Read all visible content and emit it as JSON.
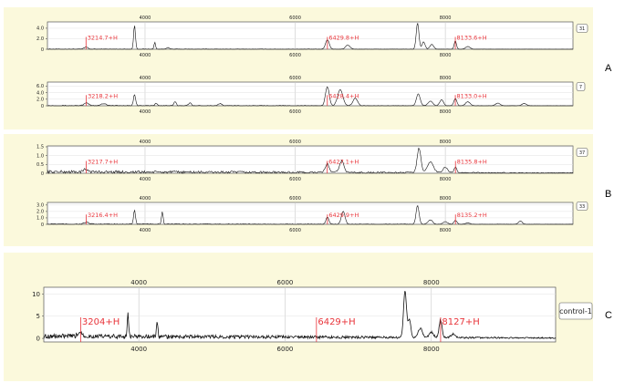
{
  "panel_labels": {
    "A": "A",
    "B": "B",
    "C": "C"
  },
  "colors": {
    "background": "#fbf9dc",
    "trace": "#111111",
    "marker": "#e8343a",
    "grid": "#c8c8c8"
  },
  "chart_data": [
    {
      "type": "line",
      "group": "A",
      "tag": "31",
      "xlim": [
        2700,
        9700
      ],
      "ylim": [
        0,
        5.2
      ],
      "x_ticks": [
        4000,
        6000,
        8000
      ],
      "x_tick_labels": [
        "4000",
        "6000",
        "8000"
      ],
      "y_ticks": [
        0,
        2.0,
        4.0
      ],
      "y_tick_labels": [
        "0",
        "2.0",
        "4.0"
      ],
      "grid": true,
      "noise": 0.07,
      "peaks": [
        [
          3214,
          0.4,
          25
        ],
        [
          3860,
          4.6,
          12
        ],
        [
          4130,
          1.3,
          10
        ],
        [
          4300,
          0.3,
          20
        ],
        [
          6429,
          1.8,
          25
        ],
        [
          6700,
          0.8,
          30
        ],
        [
          7630,
          5.0,
          18
        ],
        [
          7710,
          1.4,
          20
        ],
        [
          7820,
          0.9,
          25
        ],
        [
          8133,
          1.6,
          15
        ],
        [
          8300,
          0.5,
          30
        ]
      ],
      "markers": [
        {
          "x": 3214,
          "label": "3214.7+H"
        },
        {
          "x": 6429,
          "label": "6429.8+H"
        },
        {
          "x": 8133,
          "label": "8133.6+H"
        }
      ]
    },
    {
      "type": "line",
      "group": "A",
      "tag": "7",
      "xlim": [
        2700,
        9700
      ],
      "ylim": [
        0,
        7.2
      ],
      "x_ticks": [
        4000,
        6000,
        8000
      ],
      "x_tick_labels": [
        "4000",
        "6000",
        "8000"
      ],
      "y_ticks": [
        0,
        2.0,
        4.0,
        6.0
      ],
      "y_tick_labels": [
        "0",
        "2.0",
        "4.0",
        "6.0"
      ],
      "grid": true,
      "noise": 0.15,
      "peaks": [
        [
          3218,
          0.8,
          30
        ],
        [
          3450,
          0.6,
          40
        ],
        [
          3860,
          3.4,
          14
        ],
        [
          4150,
          0.8,
          15
        ],
        [
          4400,
          1.2,
          15
        ],
        [
          4600,
          0.8,
          20
        ],
        [
          5000,
          0.6,
          25
        ],
        [
          6428,
          5.8,
          25
        ],
        [
          6600,
          4.8,
          35
        ],
        [
          6800,
          2.3,
          30
        ],
        [
          7640,
          3.6,
          25
        ],
        [
          7800,
          1.4,
          30
        ],
        [
          7950,
          1.8,
          25
        ],
        [
          8133,
          2.2,
          20
        ],
        [
          8300,
          1.2,
          30
        ],
        [
          8700,
          0.8,
          30
        ],
        [
          9050,
          0.7,
          30
        ]
      ],
      "markers": [
        {
          "x": 3218,
          "label": "3218.2+H"
        },
        {
          "x": 6428,
          "label": "6428.4+H"
        },
        {
          "x": 8133,
          "label": "8133.0+H"
        }
      ]
    },
    {
      "type": "line",
      "group": "B",
      "tag": "37",
      "xlim": [
        2700,
        9700
      ],
      "ylim": [
        0,
        1.55
      ],
      "x_ticks": [
        4000,
        6000,
        8000
      ],
      "x_tick_labels": [
        "4000",
        "6000",
        "8000"
      ],
      "y_ticks": [
        0,
        0.5,
        1.0,
        1.5
      ],
      "y_tick_labels": [
        "0",
        "0.5",
        "1.0",
        "1.5"
      ],
      "grid": true,
      "noise": 0.09,
      "peaks": [
        [
          3217,
          0.15,
          30
        ],
        [
          6427,
          0.5,
          25
        ],
        [
          6620,
          0.65,
          30
        ],
        [
          7650,
          1.4,
          25
        ],
        [
          7800,
          0.6,
          40
        ],
        [
          8000,
          0.3,
          30
        ],
        [
          8135,
          0.3,
          20
        ]
      ],
      "markers": [
        {
          "x": 3217,
          "label": "3217.7+H"
        },
        {
          "x": 6427,
          "label": "6427.1+H"
        },
        {
          "x": 8135,
          "label": "8135.8+H"
        }
      ]
    },
    {
      "type": "line",
      "group": "B",
      "tag": "33",
      "xlim": [
        2700,
        9700
      ],
      "ylim": [
        0,
        3.4
      ],
      "x_ticks": [
        4000,
        6000,
        8000
      ],
      "x_tick_labels": [
        "4000",
        "6000",
        "8000"
      ],
      "y_ticks": [
        0,
        1.0,
        2.0,
        3.0
      ],
      "y_tick_labels": [
        "0",
        "1.0",
        "2.0",
        "3.0"
      ],
      "grid": true,
      "noise": 0.1,
      "peaks": [
        [
          3216,
          0.3,
          30
        ],
        [
          3860,
          2.3,
          12
        ],
        [
          4230,
          2.0,
          10
        ],
        [
          6429,
          1.1,
          20
        ],
        [
          6640,
          2.0,
          25
        ],
        [
          7630,
          2.9,
          20
        ],
        [
          7800,
          0.7,
          30
        ],
        [
          8000,
          0.4,
          30
        ],
        [
          8135,
          0.6,
          20
        ],
        [
          8300,
          0.2,
          30
        ],
        [
          9000,
          0.5,
          25
        ]
      ],
      "markers": [
        {
          "x": 3216,
          "label": "3216.4+H"
        },
        {
          "x": 6429,
          "label": "6429.9+H"
        },
        {
          "x": 8135,
          "label": "8135.2+H"
        }
      ]
    },
    {
      "type": "line",
      "group": "C",
      "tag": "control-1",
      "xlim": [
        2700,
        9700
      ],
      "ylim": [
        -0.8,
        11.5
      ],
      "x_ticks": [
        4000,
        6000,
        8000
      ],
      "x_tick_labels": [
        "4000",
        "6000",
        "8000"
      ],
      "y_ticks": [
        0,
        5,
        10
      ],
      "y_tick_labels": [
        "0",
        "5",
        "10"
      ],
      "grid": true,
      "noise": 0.55,
      "peaks": [
        [
          3200,
          1.0,
          30
        ],
        [
          3850,
          5.0,
          10
        ],
        [
          4250,
          3.2,
          10
        ],
        [
          7640,
          10.5,
          20
        ],
        [
          7700,
          4.0,
          20
        ],
        [
          7850,
          2.0,
          30
        ],
        [
          8000,
          1.2,
          30
        ],
        [
          8127,
          4.0,
          20
        ],
        [
          8300,
          0.8,
          30
        ]
      ],
      "markers": [
        {
          "x": 3204,
          "label": "3204+H"
        },
        {
          "x": 6429,
          "label": "6429+H"
        },
        {
          "x": 8127,
          "label": "8127+H"
        }
      ]
    }
  ]
}
